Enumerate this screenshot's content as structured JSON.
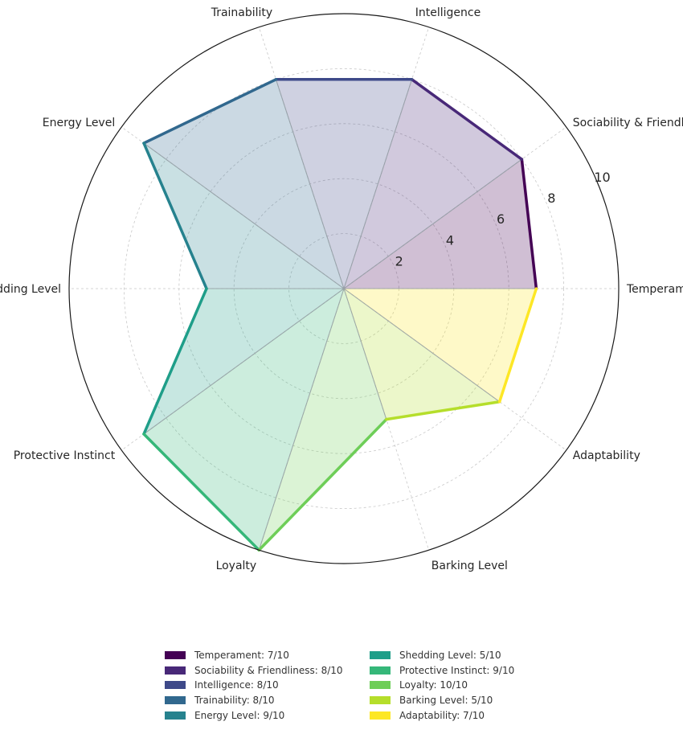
{
  "chart_data": {
    "type": "radar",
    "rmax": 10,
    "r_ticks": [
      "2",
      "4",
      "6",
      "8",
      "10"
    ],
    "categories": [
      "Temperament",
      "Sociability & Friendliness",
      "Intelligence",
      "Trainability",
      "Energy Level",
      "Shedding Level",
      "Protective Instinct",
      "Loyalty",
      "Barking Level",
      "Adaptability"
    ],
    "values": [
      7,
      8,
      8,
      8,
      9,
      5,
      9,
      10,
      5,
      7
    ],
    "colors": [
      "#440154",
      "#482878",
      "#3e4989",
      "#31688e",
      "#26828e",
      "#1f9e89",
      "#35b779",
      "#6ece58",
      "#b5de2b",
      "#fde725"
    ],
    "grid": true,
    "legend_position": "bottom",
    "legend": [
      "Temperament: 7/10",
      "Sociability & Friendliness: 8/10",
      "Intelligence: 8/10",
      "Trainability: 8/10",
      "Energy Level: 9/10",
      "Shedding Level: 5/10",
      "Protective Instinct: 9/10",
      "Loyalty: 10/10",
      "Barking Level: 5/10",
      "Adaptability: 7/10"
    ]
  }
}
